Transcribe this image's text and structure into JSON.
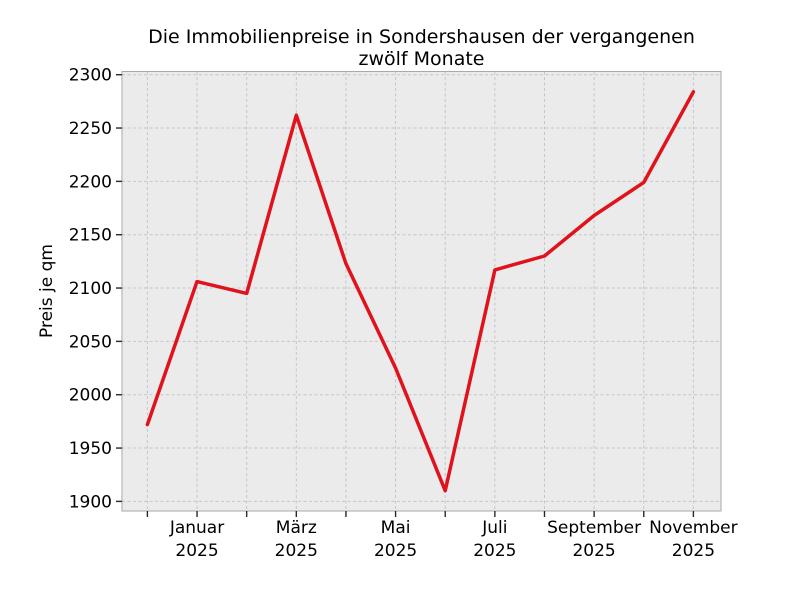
{
  "page": {
    "background_color": "#ffffff"
  },
  "chart_data": {
    "type": "line",
    "title": "Die Immobilienpreise in Sondershausen der vergangenen zwölf Monate",
    "xlabel": "",
    "ylabel": "Preis je qm",
    "n_points": 12,
    "values": [
      1972,
      2106,
      2095,
      2262,
      2123,
      2025,
      1910,
      2117,
      2130,
      2168,
      2199,
      2284
    ],
    "x_tick_positions": [
      1,
      3,
      5,
      7,
      9,
      11
    ],
    "x_tick_labels": [
      [
        "Januar",
        "2025"
      ],
      [
        "März",
        "2025"
      ],
      [
        "Mai",
        "2025"
      ],
      [
        "Juli",
        "2025"
      ],
      [
        "September",
        "2025"
      ],
      [
        "November",
        "2025"
      ]
    ],
    "yticks": [
      1900,
      1950,
      2000,
      2050,
      2100,
      2150,
      2200,
      2250,
      2300
    ],
    "ylim": [
      1891,
      2303
    ],
    "grid": "dashed",
    "legend": "none",
    "line_color": "#e0131d",
    "plot_bg_color": "#ebebeb",
    "grid_color": "#c6c6c6",
    "spine_color": "#a9a9a9",
    "tick_color": "#2a2a2a",
    "text_color": "#000000"
  }
}
